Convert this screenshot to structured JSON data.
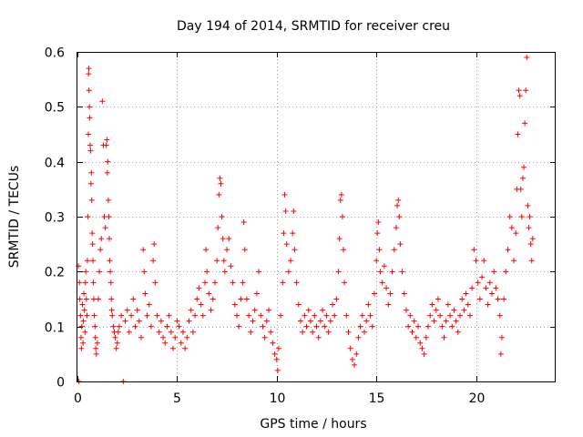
{
  "chart_data": {
    "type": "scatter",
    "title": "Day 194 of 2014, SRMTID for receiver creu",
    "xlabel": "GPS time / hours",
    "ylabel": "SRMTID / TECUs",
    "xlim": [
      0,
      24
    ],
    "ylim": [
      0,
      0.6
    ],
    "xticks": [
      0,
      5,
      10,
      15,
      20
    ],
    "yticks": [
      0,
      0.1,
      0.2,
      0.3,
      0.4,
      0.5,
      0.6
    ],
    "grid": true,
    "marker": "+",
    "color": "#ff0000",
    "series": [
      {
        "name": "SRMTID",
        "points": [
          [
            0.05,
            0.21
          ],
          [
            0.08,
            0.0
          ],
          [
            0.1,
            0.18
          ],
          [
            0.12,
            0.15
          ],
          [
            0.15,
            0.12
          ],
          [
            0.18,
            0.08
          ],
          [
            0.2,
            0.06
          ],
          [
            0.22,
            0.1
          ],
          [
            0.25,
            0.14
          ],
          [
            0.28,
            0.07
          ],
          [
            0.3,
            0.11
          ],
          [
            0.32,
            0.16
          ],
          [
            0.35,
            0.13
          ],
          [
            0.38,
            0.09
          ],
          [
            0.4,
            0.18
          ],
          [
            0.42,
            0.2
          ],
          [
            0.45,
            0.15
          ],
          [
            0.48,
            0.12
          ],
          [
            0.5,
            0.22
          ],
          [
            0.52,
            0.3
          ],
          [
            0.55,
            0.45
          ],
          [
            0.56,
            0.56
          ],
          [
            0.57,
            0.57
          ],
          [
            0.58,
            0.53
          ],
          [
            0.6,
            0.5
          ],
          [
            0.62,
            0.48
          ],
          [
            0.64,
            0.43
          ],
          [
            0.66,
            0.42
          ],
          [
            0.68,
            0.36
          ],
          [
            0.7,
            0.38
          ],
          [
            0.72,
            0.33
          ],
          [
            0.74,
            0.27
          ],
          [
            0.76,
            0.25
          ],
          [
            0.78,
            0.22
          ],
          [
            0.8,
            0.18
          ],
          [
            0.82,
            0.15
          ],
          [
            0.85,
            0.12
          ],
          [
            0.88,
            0.1
          ],
          [
            0.9,
            0.08
          ],
          [
            0.92,
            0.06
          ],
          [
            0.95,
            0.05
          ],
          [
            1.0,
            0.07
          ],
          [
            1.05,
            0.15
          ],
          [
            1.1,
            0.2
          ],
          [
            1.15,
            0.24
          ],
          [
            1.2,
            0.26
          ],
          [
            1.25,
            0.51
          ],
          [
            1.3,
            0.43
          ],
          [
            1.35,
            0.3
          ],
          [
            1.4,
            0.28
          ],
          [
            1.45,
            0.43
          ],
          [
            1.48,
            0.44
          ],
          [
            1.5,
            0.38
          ],
          [
            1.52,
            0.4
          ],
          [
            1.55,
            0.33
          ],
          [
            1.58,
            0.3
          ],
          [
            1.6,
            0.26
          ],
          [
            1.62,
            0.22
          ],
          [
            1.65,
            0.2
          ],
          [
            1.68,
            0.18
          ],
          [
            1.7,
            0.15
          ],
          [
            1.72,
            0.13
          ],
          [
            1.75,
            0.12
          ],
          [
            1.8,
            0.1
          ],
          [
            1.85,
            0.09
          ],
          [
            1.9,
            0.08
          ],
          [
            1.95,
            0.06
          ],
          [
            2.0,
            0.07
          ],
          [
            2.05,
            0.09
          ],
          [
            2.1,
            0.1
          ],
          [
            2.2,
            0.12
          ],
          [
            2.3,
            0.0
          ],
          [
            2.4,
            0.11
          ],
          [
            2.5,
            0.13
          ],
          [
            2.6,
            0.09
          ],
          [
            2.7,
            0.12
          ],
          [
            2.8,
            0.15
          ],
          [
            2.9,
            0.1
          ],
          [
            3.0,
            0.13
          ],
          [
            3.1,
            0.11
          ],
          [
            3.2,
            0.08
          ],
          [
            3.3,
            0.24
          ],
          [
            3.35,
            0.2
          ],
          [
            3.4,
            0.16
          ],
          [
            3.5,
            0.12
          ],
          [
            3.6,
            0.14
          ],
          [
            3.7,
            0.1
          ],
          [
            3.8,
            0.22
          ],
          [
            3.85,
            0.25
          ],
          [
            3.9,
            0.18
          ],
          [
            4.0,
            0.12
          ],
          [
            4.1,
            0.09
          ],
          [
            4.2,
            0.11
          ],
          [
            4.3,
            0.08
          ],
          [
            4.4,
            0.07
          ],
          [
            4.5,
            0.1
          ],
          [
            4.6,
            0.12
          ],
          [
            4.7,
            0.09
          ],
          [
            4.8,
            0.06
          ],
          [
            4.9,
            0.08
          ],
          [
            5.0,
            0.11
          ],
          [
            5.1,
            0.1
          ],
          [
            5.2,
            0.07
          ],
          [
            5.3,
            0.09
          ],
          [
            5.4,
            0.06
          ],
          [
            5.5,
            0.08
          ],
          [
            5.6,
            0.11
          ],
          [
            5.7,
            0.13
          ],
          [
            5.8,
            0.09
          ],
          [
            5.9,
            0.12
          ],
          [
            6.0,
            0.15
          ],
          [
            6.1,
            0.17
          ],
          [
            6.2,
            0.14
          ],
          [
            6.3,
            0.12
          ],
          [
            6.4,
            0.18
          ],
          [
            6.45,
            0.24
          ],
          [
            6.5,
            0.2
          ],
          [
            6.6,
            0.16
          ],
          [
            6.7,
            0.13
          ],
          [
            6.8,
            0.15
          ],
          [
            6.9,
            0.18
          ],
          [
            7.0,
            0.22
          ],
          [
            7.05,
            0.28
          ],
          [
            7.1,
            0.34
          ],
          [
            7.15,
            0.37
          ],
          [
            7.2,
            0.36
          ],
          [
            7.25,
            0.3
          ],
          [
            7.3,
            0.26
          ],
          [
            7.35,
            0.22
          ],
          [
            7.4,
            0.2
          ],
          [
            7.5,
            0.24
          ],
          [
            7.6,
            0.26
          ],
          [
            7.7,
            0.21
          ],
          [
            7.8,
            0.18
          ],
          [
            7.9,
            0.14
          ],
          [
            8.0,
            0.12
          ],
          [
            8.1,
            0.1
          ],
          [
            8.2,
            0.15
          ],
          [
            8.3,
            0.18
          ],
          [
            8.35,
            0.29
          ],
          [
            8.4,
            0.24
          ],
          [
            8.5,
            0.15
          ],
          [
            8.6,
            0.12
          ],
          [
            8.7,
            0.09
          ],
          [
            8.8,
            0.11
          ],
          [
            8.9,
            0.13
          ],
          [
            9.0,
            0.16
          ],
          [
            9.1,
            0.2
          ],
          [
            9.2,
            0.12
          ],
          [
            9.3,
            0.1
          ],
          [
            9.4,
            0.08
          ],
          [
            9.5,
            0.11
          ],
          [
            9.6,
            0.13
          ],
          [
            9.7,
            0.09
          ],
          [
            9.8,
            0.07
          ],
          [
            9.9,
            0.05
          ],
          [
            10.0,
            0.04
          ],
          [
            10.05,
            0.02
          ],
          [
            10.1,
            0.06
          ],
          [
            10.2,
            0.12
          ],
          [
            10.3,
            0.18
          ],
          [
            10.35,
            0.27
          ],
          [
            10.4,
            0.34
          ],
          [
            10.45,
            0.31
          ],
          [
            10.5,
            0.25
          ],
          [
            10.6,
            0.2
          ],
          [
            10.7,
            0.22
          ],
          [
            10.8,
            0.27
          ],
          [
            10.85,
            0.31
          ],
          [
            10.9,
            0.24
          ],
          [
            11.0,
            0.18
          ],
          [
            11.1,
            0.14
          ],
          [
            11.2,
            0.11
          ],
          [
            11.3,
            0.09
          ],
          [
            11.4,
            0.12
          ],
          [
            11.5,
            0.1
          ],
          [
            11.6,
            0.13
          ],
          [
            11.7,
            0.11
          ],
          [
            11.8,
            0.09
          ],
          [
            11.9,
            0.12
          ],
          [
            12.0,
            0.1
          ],
          [
            12.1,
            0.08
          ],
          [
            12.2,
            0.11
          ],
          [
            12.3,
            0.13
          ],
          [
            12.4,
            0.1
          ],
          [
            12.5,
            0.12
          ],
          [
            12.6,
            0.09
          ],
          [
            12.7,
            0.11
          ],
          [
            12.8,
            0.14
          ],
          [
            12.9,
            0.12
          ],
          [
            13.0,
            0.15
          ],
          [
            13.1,
            0.2
          ],
          [
            13.15,
            0.26
          ],
          [
            13.2,
            0.33
          ],
          [
            13.25,
            0.34
          ],
          [
            13.3,
            0.3
          ],
          [
            13.35,
            0.24
          ],
          [
            13.4,
            0.18
          ],
          [
            13.5,
            0.12
          ],
          [
            13.6,
            0.09
          ],
          [
            13.7,
            0.06
          ],
          [
            13.8,
            0.04
          ],
          [
            13.9,
            0.03
          ],
          [
            14.0,
            0.05
          ],
          [
            14.1,
            0.08
          ],
          [
            14.2,
            0.1
          ],
          [
            14.3,
            0.12
          ],
          [
            14.4,
            0.09
          ],
          [
            14.5,
            0.11
          ],
          [
            14.6,
            0.14
          ],
          [
            14.7,
            0.12
          ],
          [
            14.8,
            0.1
          ],
          [
            14.9,
            0.16
          ],
          [
            15.0,
            0.22
          ],
          [
            15.05,
            0.27
          ],
          [
            15.1,
            0.29
          ],
          [
            15.15,
            0.24
          ],
          [
            15.2,
            0.2
          ],
          [
            15.3,
            0.18
          ],
          [
            15.4,
            0.21
          ],
          [
            15.5,
            0.17
          ],
          [
            15.6,
            0.14
          ],
          [
            15.7,
            0.16
          ],
          [
            15.8,
            0.2
          ],
          [
            15.9,
            0.24
          ],
          [
            16.0,
            0.28
          ],
          [
            16.05,
            0.32
          ],
          [
            16.1,
            0.33
          ],
          [
            16.15,
            0.3
          ],
          [
            16.2,
            0.25
          ],
          [
            16.3,
            0.2
          ],
          [
            16.4,
            0.16
          ],
          [
            16.5,
            0.13
          ],
          [
            16.6,
            0.1
          ],
          [
            16.7,
            0.12
          ],
          [
            16.8,
            0.09
          ],
          [
            16.9,
            0.11
          ],
          [
            17.0,
            0.08
          ],
          [
            17.1,
            0.1
          ],
          [
            17.2,
            0.07
          ],
          [
            17.3,
            0.06
          ],
          [
            17.4,
            0.05
          ],
          [
            17.5,
            0.08
          ],
          [
            17.6,
            0.1
          ],
          [
            17.7,
            0.12
          ],
          [
            17.8,
            0.14
          ],
          [
            17.9,
            0.11
          ],
          [
            18.0,
            0.13
          ],
          [
            18.1,
            0.15
          ],
          [
            18.2,
            0.12
          ],
          [
            18.3,
            0.1
          ],
          [
            18.4,
            0.08
          ],
          [
            18.5,
            0.11
          ],
          [
            18.6,
            0.14
          ],
          [
            18.7,
            0.12
          ],
          [
            18.8,
            0.1
          ],
          [
            18.9,
            0.13
          ],
          [
            19.0,
            0.11
          ],
          [
            19.1,
            0.09
          ],
          [
            19.2,
            0.12
          ],
          [
            19.3,
            0.15
          ],
          [
            19.4,
            0.13
          ],
          [
            19.5,
            0.16
          ],
          [
            19.6,
            0.14
          ],
          [
            19.7,
            0.12
          ],
          [
            19.8,
            0.17
          ],
          [
            19.9,
            0.24
          ],
          [
            20.0,
            0.22
          ],
          [
            20.1,
            0.18
          ],
          [
            20.2,
            0.15
          ],
          [
            20.3,
            0.19
          ],
          [
            20.4,
            0.22
          ],
          [
            20.5,
            0.17
          ],
          [
            20.6,
            0.14
          ],
          [
            20.7,
            0.18
          ],
          [
            20.8,
            0.16
          ],
          [
            20.9,
            0.2
          ],
          [
            21.0,
            0.17
          ],
          [
            21.1,
            0.15
          ],
          [
            21.2,
            0.12
          ],
          [
            21.25,
            0.05
          ],
          [
            21.3,
            0.08
          ],
          [
            21.4,
            0.15
          ],
          [
            21.5,
            0.2
          ],
          [
            21.6,
            0.24
          ],
          [
            21.7,
            0.3
          ],
          [
            21.8,
            0.28
          ],
          [
            21.9,
            0.22
          ],
          [
            22.0,
            0.27
          ],
          [
            22.05,
            0.35
          ],
          [
            22.1,
            0.45
          ],
          [
            22.15,
            0.53
          ],
          [
            22.2,
            0.52
          ],
          [
            22.25,
            0.35
          ],
          [
            22.3,
            0.3
          ],
          [
            22.35,
            0.37
          ],
          [
            22.4,
            0.39
          ],
          [
            22.45,
            0.47
          ],
          [
            22.5,
            0.53
          ],
          [
            22.55,
            0.59
          ],
          [
            22.6,
            0.32
          ],
          [
            22.65,
            0.28
          ],
          [
            22.7,
            0.3
          ],
          [
            22.75,
            0.25
          ],
          [
            22.8,
            0.22
          ],
          [
            22.85,
            0.26
          ]
        ]
      }
    ]
  }
}
